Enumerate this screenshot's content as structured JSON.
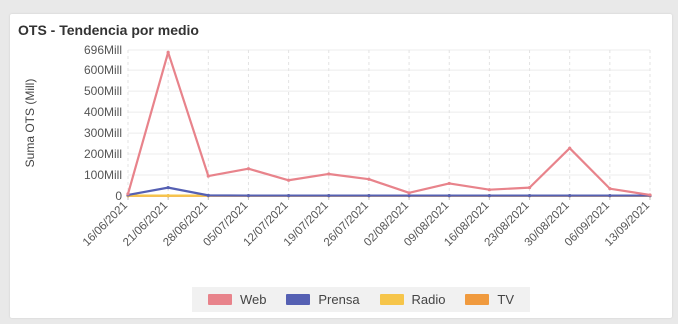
{
  "chart_data": {
    "type": "line",
    "title": "OTS - Tendencia por medio",
    "xlabel": "",
    "ylabel": "Suma OTS (Mill)",
    "ylim": [
      0,
      696
    ],
    "y_ticks": [
      "0",
      "100Mill",
      "200Mill",
      "300Mill",
      "400Mill",
      "500Mill",
      "600Mill",
      "696Mill"
    ],
    "y_tick_values": [
      0,
      100,
      200,
      300,
      400,
      500,
      600,
      696
    ],
    "categories": [
      "16/06/2021",
      "21/06/2021",
      "28/06/2021",
      "05/07/2021",
      "12/07/2021",
      "19/07/2021",
      "26/07/2021",
      "02/08/2021",
      "09/08/2021",
      "16/08/2021",
      "23/08/2021",
      "30/08/2021",
      "06/09/2021",
      "13/09/2021"
    ],
    "grid": true,
    "legend_position": "bottom",
    "series": [
      {
        "name": "Web",
        "color": "#e8838b",
        "values": [
          10,
          685,
          95,
          130,
          75,
          105,
          80,
          15,
          60,
          30,
          40,
          228,
          35,
          5
        ]
      },
      {
        "name": "Prensa",
        "color": "#5560b3",
        "values": [
          5,
          40,
          3,
          2,
          2,
          2,
          2,
          2,
          2,
          2,
          2,
          2,
          2,
          2
        ]
      },
      {
        "name": "Radio",
        "color": "#f6c54a",
        "values": [
          2,
          2,
          2,
          2,
          2,
          2,
          2,
          2,
          2,
          2,
          2,
          2,
          2,
          2
        ]
      },
      {
        "name": "TV",
        "color": "#f09a3e",
        "values": [
          1,
          1,
          1,
          1,
          1,
          1,
          1,
          1,
          1,
          1,
          1,
          1,
          1,
          1
        ]
      }
    ]
  }
}
